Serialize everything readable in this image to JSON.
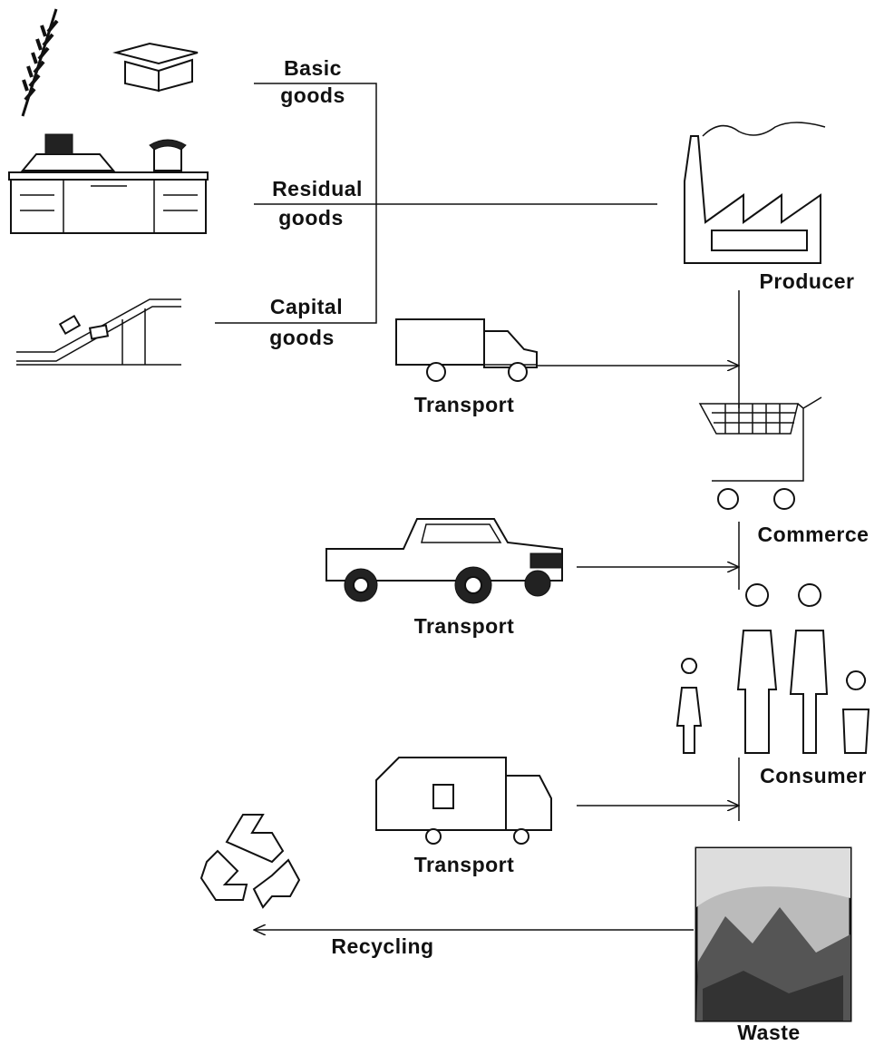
{
  "nodes": [
    {
      "label": [
        "Basic",
        "goods"
      ]
    },
    {
      "label": [
        "Residual",
        "goods"
      ]
    },
    {
      "label": [
        "Capital",
        "goods"
      ]
    },
    {
      "label": [
        "Producer"
      ]
    },
    {
      "label": [
        "Transport"
      ]
    },
    {
      "label": [
        "Commerce"
      ]
    },
    {
      "label": [
        "Transport"
      ]
    },
    {
      "label": [
        "Consumer"
      ]
    },
    {
      "label": [
        "Transport"
      ]
    },
    {
      "label": [
        "Recycling"
      ]
    },
    {
      "label": [
        "Waste"
      ]
    }
  ]
}
